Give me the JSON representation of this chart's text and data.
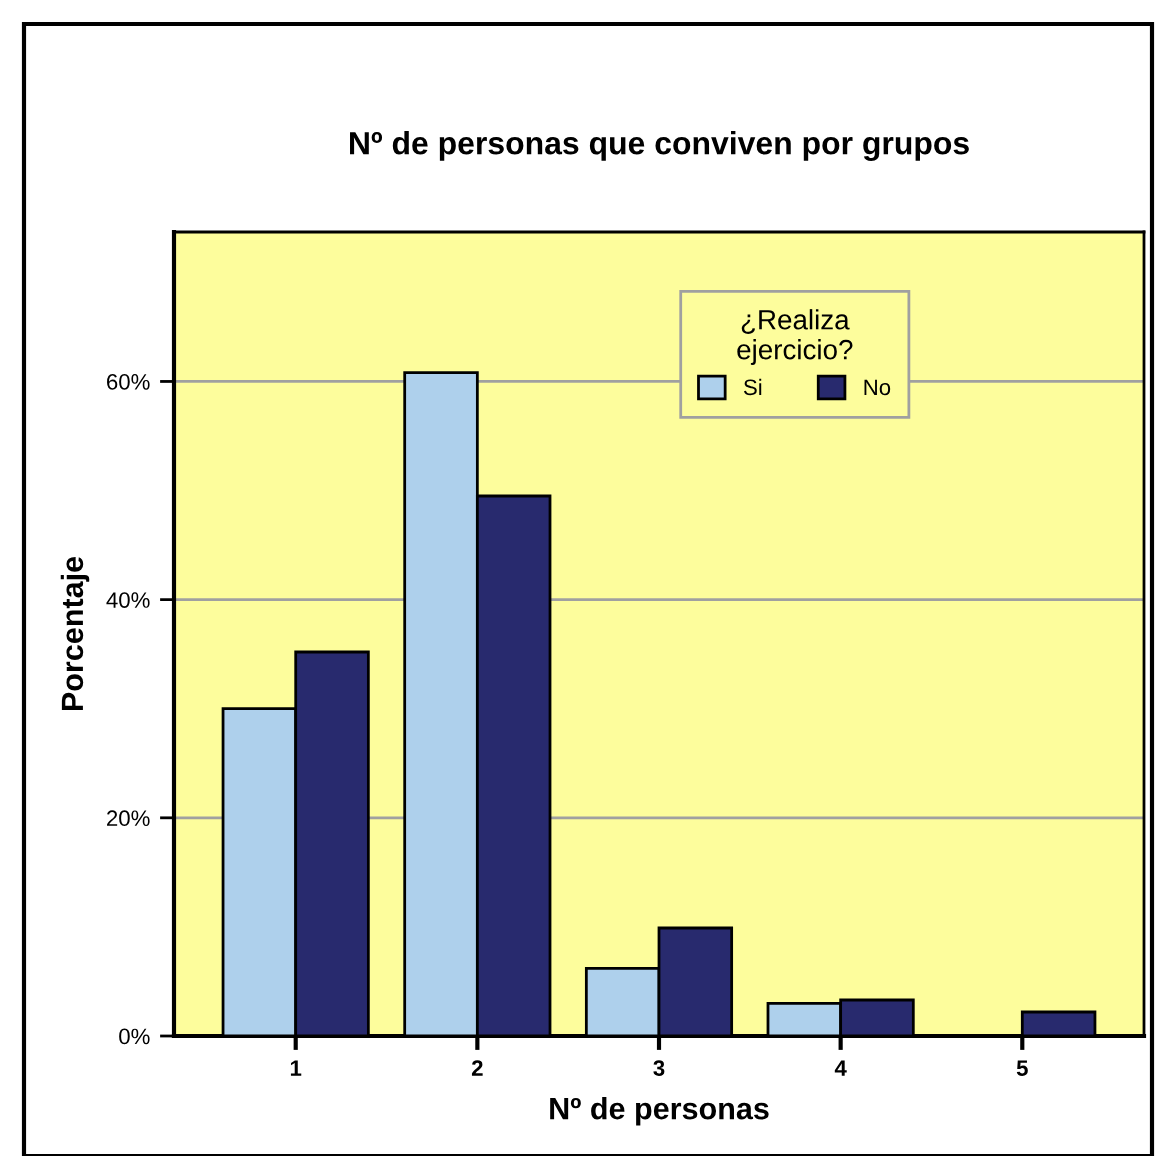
{
  "chart_data": {
    "type": "bar",
    "title": "Nº de personas que conviven por grupos",
    "xlabel": "Nº de personas",
    "ylabel": "Porcentaje",
    "legend_title": "¿Realiza\nejercicio?",
    "categories": [
      "1",
      "2",
      "3",
      "4",
      "5"
    ],
    "series": [
      {
        "name": "Si",
        "color": "#aed0ec",
        "values": [
          30,
          60.8,
          6.2,
          3.0,
          null
        ]
      },
      {
        "name": "No",
        "color": "#282a6e",
        "values": [
          35.2,
          49.5,
          9.9,
          3.3,
          2.2
        ]
      }
    ],
    "ylim": [
      0,
      73.7
    ],
    "yticks": [
      {
        "value": 0,
        "label": "0%"
      },
      {
        "value": 20,
        "label": "20%"
      },
      {
        "value": 40,
        "label": "40%"
      },
      {
        "value": 60,
        "label": "60%"
      }
    ],
    "grid": "y",
    "legend": "top right"
  }
}
